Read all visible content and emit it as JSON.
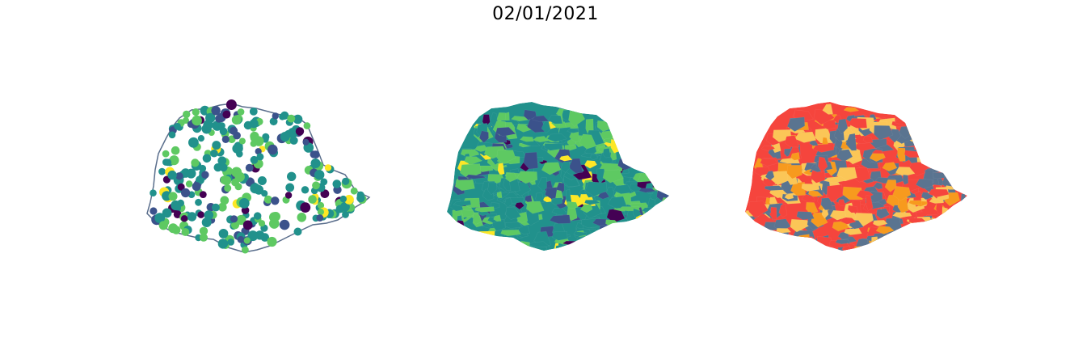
{
  "title": "02/01/2021",
  "panels": [
    {
      "kind": "points",
      "colormap": [
        "#440154",
        "#3b528b",
        "#21918c",
        "#5ec962",
        "#fde725"
      ]
    },
    {
      "kind": "choropleth",
      "colormap": [
        "#440154",
        "#3b528b",
        "#21918c",
        "#5ec962",
        "#fde725"
      ]
    },
    {
      "kind": "categorical",
      "colors": [
        "#5a7490",
        "#f5453d",
        "#f79a1e",
        "#fbc657"
      ]
    }
  ],
  "outline_color": "#5a6e8c"
}
